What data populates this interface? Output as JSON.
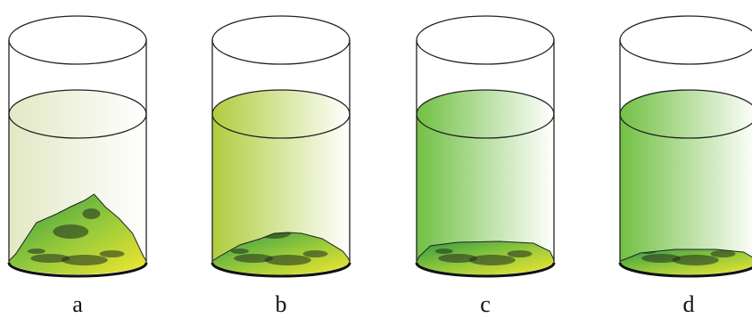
{
  "labels": [
    "a",
    "b",
    "c",
    "d"
  ]
}
